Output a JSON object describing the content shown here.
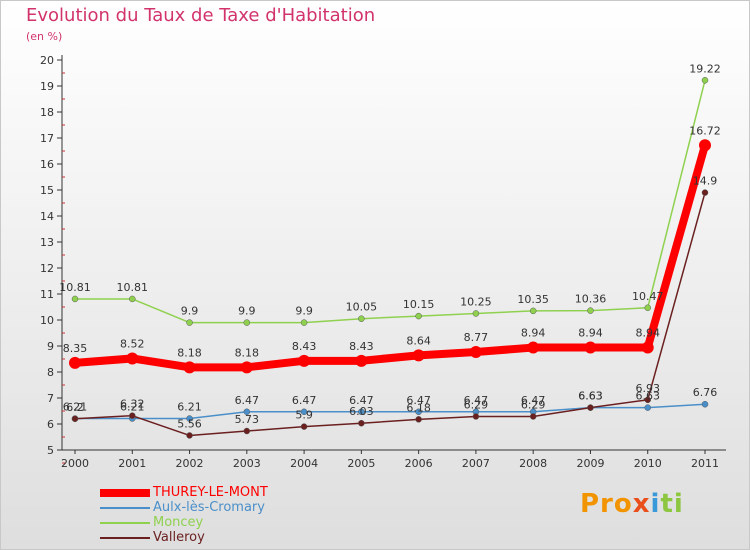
{
  "title": "Evolution du Taux de Taxe d'Habitation",
  "unit_label": "(en %)",
  "logo": {
    "part1": "Pro",
    "part2": "x",
    "part3": "i",
    "part4": "ti"
  },
  "chart_data": {
    "type": "line",
    "title": "Evolution du Taux de Taxe d'Habitation",
    "ylabel": "(en %)",
    "xlabel": "",
    "ylim": [
      5,
      20
    ],
    "y_ticks": [
      5,
      6,
      7,
      8,
      9,
      10,
      11,
      12,
      13,
      14,
      15,
      16,
      17,
      18,
      19,
      20
    ],
    "grid": false,
    "legend_position": "bottom-left",
    "x": [
      "2000",
      "2001",
      "2002",
      "2003",
      "2004",
      "2005",
      "2006",
      "2007",
      "2008",
      "2009",
      "2010",
      "2011"
    ],
    "series": [
      {
        "name": "THUREY-LE-MONT",
        "color": "#ff0000",
        "bold": true,
        "values": [
          8.35,
          8.52,
          8.18,
          8.18,
          8.43,
          8.43,
          8.64,
          8.77,
          8.94,
          8.94,
          8.94,
          16.72
        ],
        "labels": [
          "8.35",
          "8.52",
          "8.18",
          "8.18",
          "8.43",
          "8.43",
          "8.64",
          "8.77",
          "8.94",
          "8.94",
          "8.94",
          "16.72"
        ]
      },
      {
        "name": "Aulx-lès-Cromary",
        "color": "#4a8fc9",
        "bold": false,
        "values": [
          6.21,
          6.21,
          6.21,
          6.47,
          6.47,
          6.47,
          6.47,
          6.47,
          6.47,
          6.63,
          6.63,
          6.76
        ],
        "labels": [
          "6.21",
          "6.21",
          "6.21",
          "6.47",
          "6.47",
          "6.47",
          "6.47",
          "6.47",
          "6.47",
          "6.63",
          "6.63",
          "6.76"
        ]
      },
      {
        "name": "Moncey",
        "color": "#8fd14f",
        "bold": false,
        "values": [
          10.81,
          10.81,
          9.9,
          9.9,
          9.9,
          10.05,
          10.15,
          10.25,
          10.35,
          10.36,
          10.47,
          19.22
        ],
        "labels": [
          "10.81",
          "10.81",
          "9.9",
          "9.9",
          "9.9",
          "10.05",
          "10.15",
          "10.25",
          "10.35",
          "10.36",
          "10.47",
          "19.22"
        ]
      },
      {
        "name": "Valleroy",
        "color": "#6b2020",
        "bold": false,
        "values": [
          6.2,
          6.32,
          5.56,
          5.73,
          5.9,
          6.03,
          6.18,
          6.29,
          6.29,
          6.63,
          6.93,
          14.9
        ],
        "labels": [
          "6.2",
          "6.32",
          "5.56",
          "5.73",
          "5.9",
          "6.03",
          "6.18",
          "6.29",
          "6.29",
          "6.63",
          "6.93",
          "14.9"
        ]
      }
    ]
  }
}
